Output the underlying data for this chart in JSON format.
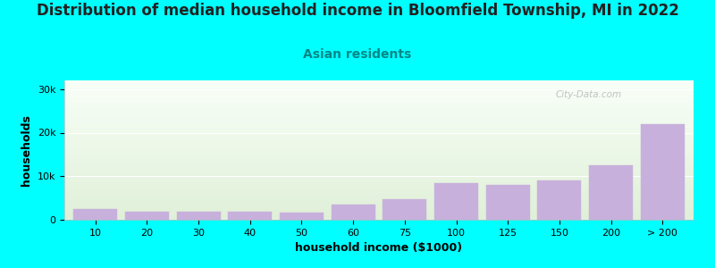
{
  "title": "Distribution of median household income in Bloomfield Township, MI in 2022",
  "subtitle": "Asian residents",
  "xlabel": "household income ($1000)",
  "ylabel": "households",
  "background_color": "#00FFFF",
  "plot_bg_top": "#f8fff8",
  "plot_bg_bottom": "#e0f0d8",
  "bar_color": "#C8B0DC",
  "categories": [
    "10",
    "20",
    "30",
    "40",
    "50",
    "60",
    "75",
    "100",
    "125",
    "150",
    "200",
    "> 200"
  ],
  "values": [
    2400,
    1800,
    1900,
    1800,
    1700,
    3400,
    4800,
    8400,
    8000,
    9000,
    12500,
    22000
  ],
  "ylim": [
    0,
    32000
  ],
  "yticks": [
    0,
    10000,
    20000,
    30000
  ],
  "ytick_labels": [
    "0",
    "10k",
    "20k",
    "30k"
  ],
  "title_fontsize": 12,
  "subtitle_fontsize": 10,
  "subtitle_color": "#008888",
  "axis_label_fontsize": 9,
  "tick_fontsize": 8,
  "watermark_text": "City-Data.com"
}
